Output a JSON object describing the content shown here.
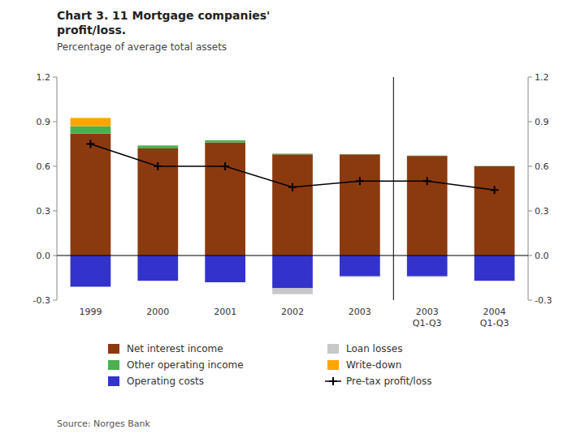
{
  "chart_data": {
    "type": "bar",
    "stacked": true,
    "title": "Chart 3. 11 Mortgage companies'\nprofit/loss.",
    "subtitle": "Percentage of average total assets",
    "annotations": [
      {
        "type": "vline",
        "x": 4.5
      },
      {
        "type": "text",
        "text": "Source: Norges Bank"
      }
    ],
    "categories": [
      "1999",
      "2000",
      "2001",
      "2002",
      "2003",
      "2003\nQ1-Q3",
      "2004\nQ1-Q3"
    ],
    "series": [
      {
        "name": "Net interest income",
        "color": "#8B3A10",
        "values": [
          0.82,
          0.72,
          0.76,
          0.68,
          0.68,
          0.67,
          0.6
        ]
      },
      {
        "name": "Other operating income",
        "color": "#4CAF50",
        "values": [
          0.05,
          0.02,
          0.015,
          0.005,
          0.002,
          0.002,
          0.002
        ]
      },
      {
        "name": "Operating costs",
        "color": "#3333CC",
        "values": [
          -0.21,
          -0.17,
          -0.18,
          -0.22,
          -0.14,
          -0.14,
          -0.17
        ]
      },
      {
        "name": "Loan losses",
        "color": "#C8C8C8",
        "values": [
          0.0,
          0.0,
          0.0,
          -0.04,
          -0.005,
          -0.005,
          0.0
        ]
      },
      {
        "name": "Write-down",
        "color": "#FFA500",
        "values": [
          0.055,
          0.0,
          0.0,
          0.0,
          0.0,
          0.0,
          0.0
        ]
      },
      {
        "name": "Pre-tax profit/loss",
        "type": "line",
        "marker": "plus",
        "color": "#000000",
        "values": [
          0.75,
          0.6,
          0.6,
          0.46,
          0.5,
          0.5,
          0.44
        ]
      }
    ],
    "ylim": [
      -0.3,
      1.2
    ],
    "yticks": [
      -0.3,
      {
        "value": 0,
        "label": "0.0"
      },
      0.3,
      0.6,
      0.9,
      1.2
    ],
    "y2lim": [
      -0.3,
      1.2
    ],
    "y2ticks": [
      -0.3,
      {
        "value": 0,
        "label": "0.0"
      },
      0.3,
      0.6,
      0.9,
      1.2
    ],
    "grid": false,
    "legend": "bottom"
  }
}
